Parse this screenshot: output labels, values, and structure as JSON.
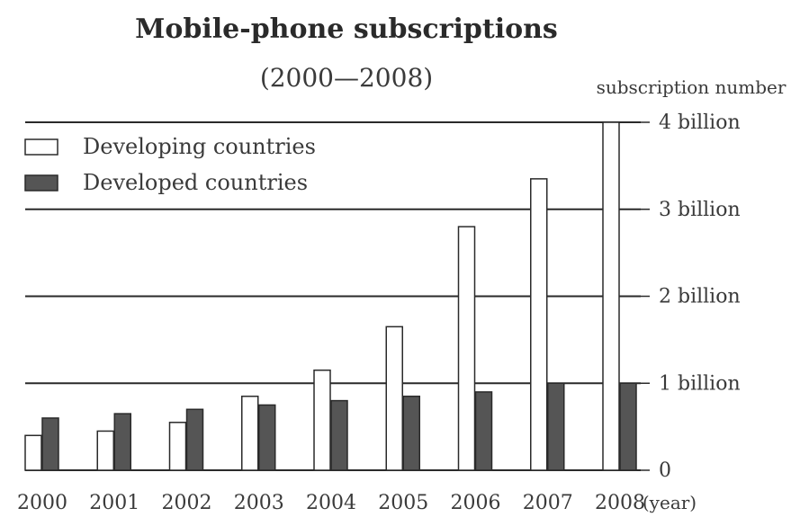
{
  "chart_data": {
    "type": "bar",
    "title": "Mobile-phone subscriptions",
    "subtitle": "(2000—2008)",
    "ylabel": "subscription number",
    "xlabel": "(year)",
    "categories": [
      "2000",
      "2001",
      "2002",
      "2003",
      "2004",
      "2005",
      "2006",
      "2007",
      "2008"
    ],
    "series": [
      {
        "name": "Developing countries",
        "color": "#ffffff",
        "values": [
          0.4,
          0.45,
          0.55,
          0.85,
          1.15,
          1.65,
          2.8,
          3.35,
          4.0
        ]
      },
      {
        "name": "Developed countries",
        "color": "#555555",
        "values": [
          0.6,
          0.65,
          0.7,
          0.75,
          0.8,
          0.85,
          0.9,
          1.0,
          1.0
        ]
      }
    ],
    "yticks": [
      {
        "value": 0,
        "label": "0"
      },
      {
        "value": 1,
        "label": "1 billion"
      },
      {
        "value": 2,
        "label": "2 billion"
      },
      {
        "value": 3,
        "label": "3 billion"
      },
      {
        "value": 4,
        "label": "4 billion"
      }
    ],
    "ylim": [
      0,
      4
    ],
    "grid": true,
    "legend_position": "top-left"
  }
}
